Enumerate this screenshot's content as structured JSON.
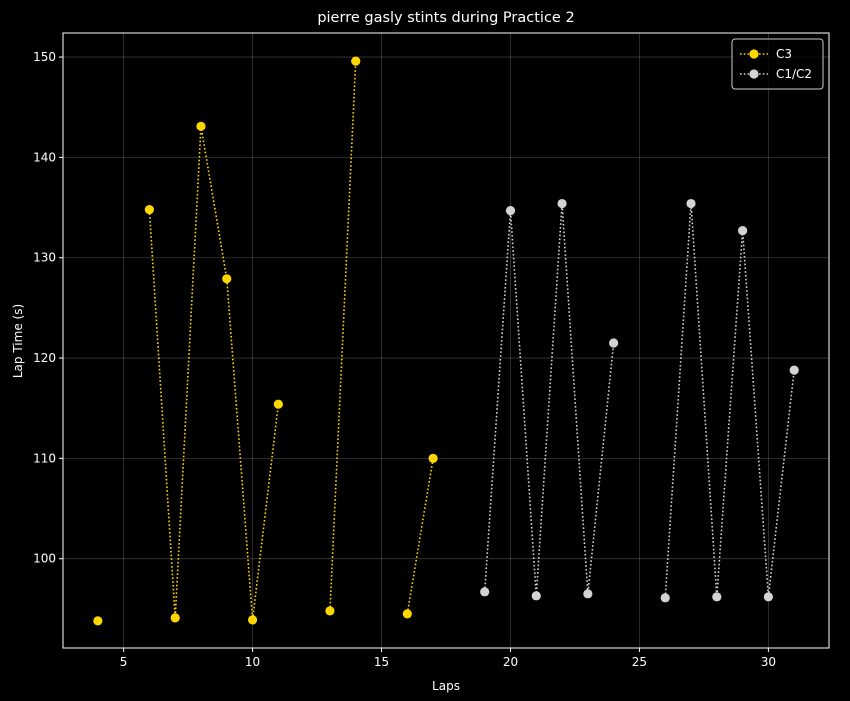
{
  "chart_data": {
    "type": "line",
    "title": "pierre gasly stints during Practice 2",
    "xlabel": "Laps",
    "ylabel": "Lap Time (s)",
    "xlim": [
      2.65,
      32.35
    ],
    "ylim": [
      91.1,
      152.4
    ],
    "xticks": [
      5,
      10,
      15,
      20,
      25,
      30
    ],
    "yticks": [
      100,
      110,
      120,
      130,
      140,
      150
    ],
    "grid": true,
    "legend_position": "top-right",
    "background": "#000000",
    "series": [
      {
        "name": "C3",
        "color": "#FFD700",
        "segments": [
          [
            [
              4,
              93.8
            ]
          ],
          [
            [
              6,
              134.8
            ],
            [
              7,
              94.1
            ],
            [
              8,
              143.1
            ],
            [
              9,
              127.9
            ],
            [
              10,
              93.9
            ],
            [
              11,
              115.4
            ]
          ],
          [
            [
              13,
              94.8
            ],
            [
              14,
              149.6
            ]
          ],
          [
            [
              16,
              94.5
            ],
            [
              17,
              110.0
            ]
          ]
        ]
      },
      {
        "name": "C1/C2",
        "color": "#D3D3D3",
        "segments": [
          [
            [
              19,
              96.7
            ],
            [
              20,
              134.7
            ],
            [
              21,
              96.3
            ],
            [
              22,
              135.4
            ],
            [
              23,
              96.5
            ],
            [
              24,
              121.5
            ]
          ],
          [
            [
              26,
              96.1
            ],
            [
              27,
              135.4
            ],
            [
              28,
              96.2
            ],
            [
              29,
              132.7
            ],
            [
              30,
              96.2
            ],
            [
              31,
              118.8
            ]
          ]
        ]
      }
    ]
  }
}
